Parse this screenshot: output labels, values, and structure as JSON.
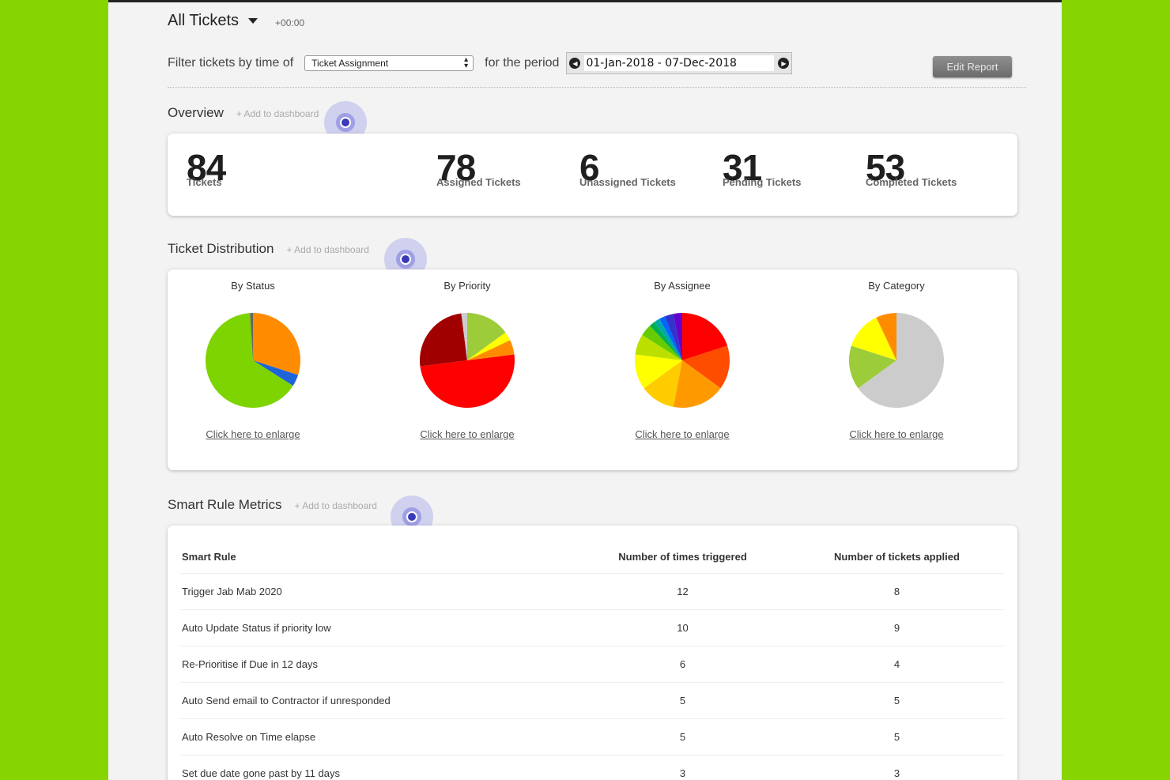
{
  "header": {
    "title": "All Tickets",
    "timezone": "+00:00",
    "filter_label": "Filter tickets by time of",
    "filter_value": "Ticket Assignment",
    "period_label": "for the period",
    "date_range": "01-Jan-2018 - 07-Dec-2018",
    "edit_button": "Edit Report"
  },
  "overview": {
    "title": "Overview",
    "add_link": "+ Add to dashboard",
    "stats": [
      {
        "value": "84",
        "label": "Tickets"
      },
      {
        "value": "78",
        "label": "Assigned Tickets"
      },
      {
        "value": "6",
        "label": "Unassigned Tickets"
      },
      {
        "value": "31",
        "label": "Pending Tickets"
      },
      {
        "value": "53",
        "label": "Completed Tickets"
      }
    ]
  },
  "distribution": {
    "title": "Ticket Distribution",
    "add_link": "+ Add to dashboard",
    "enlarge_link": "Click here to enlarge",
    "charts": [
      {
        "title": "By Status",
        "slices": [
          {
            "value": 30,
            "color": "#ff8c00"
          },
          {
            "value": 4,
            "color": "#1e64d8"
          },
          {
            "value": 65,
            "color": "#7ed400"
          },
          {
            "value": 1,
            "color": "#666666"
          }
        ]
      },
      {
        "title": "By Priority",
        "slices": [
          {
            "value": 15,
            "color": "#9ccc3a"
          },
          {
            "value": 3,
            "color": "#ffff00"
          },
          {
            "value": 5,
            "color": "#ff8c00"
          },
          {
            "value": 50,
            "color": "#ff0000"
          },
          {
            "value": 25,
            "color": "#a00000"
          },
          {
            "value": 2,
            "color": "#cccccc"
          }
        ]
      },
      {
        "title": "By Assignee",
        "slices": [
          {
            "value": 20,
            "color": "#ff0000"
          },
          {
            "value": 15,
            "color": "#ff4d00"
          },
          {
            "value": 18,
            "color": "#ff9900"
          },
          {
            "value": 12,
            "color": "#ffcc00"
          },
          {
            "value": 12,
            "color": "#ffff00"
          },
          {
            "value": 7,
            "color": "#bbe000"
          },
          {
            "value": 4,
            "color": "#66cc00"
          },
          {
            "value": 2,
            "color": "#00b050"
          },
          {
            "value": 2,
            "color": "#00aaaa"
          },
          {
            "value": 2,
            "color": "#0066ff"
          },
          {
            "value": 3,
            "color": "#3333cc"
          },
          {
            "value": 3,
            "color": "#6600cc"
          }
        ]
      },
      {
        "title": "By Category",
        "slices": [
          {
            "value": 65,
            "color": "#cccccc"
          },
          {
            "value": 15,
            "color": "#9ccc3a"
          },
          {
            "value": 13,
            "color": "#ffff00"
          },
          {
            "value": 7,
            "color": "#ff8c00"
          }
        ]
      }
    ]
  },
  "smart_rules": {
    "title": "Smart Rule Metrics",
    "add_link": "+ Add to dashboard",
    "columns": [
      "Smart Rule",
      "Number of times triggered",
      "Number of tickets applied"
    ],
    "rows": [
      [
        "Trigger Jab Mab 2020",
        "12",
        "8"
      ],
      [
        "Auto Update Status if priority low",
        "10",
        "9"
      ],
      [
        "Re-Prioritise if Due in 12 days",
        "6",
        "4"
      ],
      [
        "Auto Send email to Contractor if unresponded",
        "5",
        "5"
      ],
      [
        "Auto Resolve on Time elapse",
        "5",
        "5"
      ],
      [
        "Set due date gone past by 11 days",
        "3",
        "3"
      ]
    ]
  }
}
